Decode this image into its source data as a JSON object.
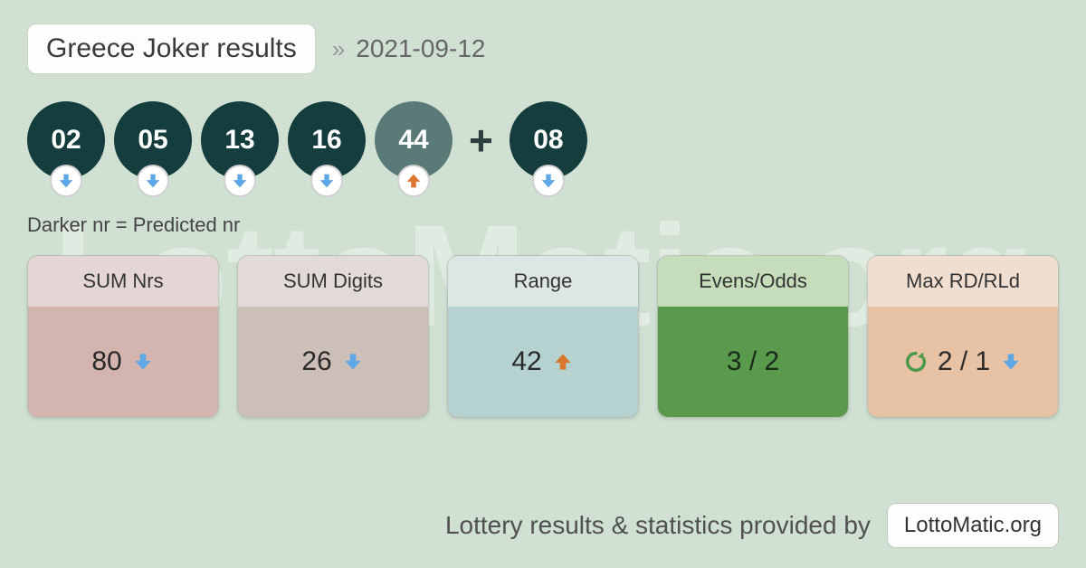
{
  "header": {
    "title": "Greece Joker results",
    "chevron": "»",
    "date": "2021-09-12"
  },
  "balls": {
    "items": [
      {
        "value": "02",
        "shade": "dark",
        "trend": "down"
      },
      {
        "value": "05",
        "shade": "dark",
        "trend": "down"
      },
      {
        "value": "13",
        "shade": "dark",
        "trend": "down"
      },
      {
        "value": "16",
        "shade": "dark",
        "trend": "down"
      },
      {
        "value": "44",
        "shade": "light",
        "trend": "up"
      }
    ],
    "plus": "+",
    "bonus": {
      "value": "08",
      "shade": "dark",
      "trend": "down"
    }
  },
  "legend": "Darker nr = Predicted nr",
  "colors": {
    "ball_dark": "#153d3d",
    "ball_light": "#5a7a78",
    "arrow_down": "#5ea8e6",
    "arrow_up": "#d9772e",
    "refresh": "#4a9a4a"
  },
  "stats": [
    {
      "label": "SUM Nrs",
      "value": "80",
      "trend": "down",
      "head_bg": "#e3d6d4",
      "body_bg": "#d4b4af"
    },
    {
      "label": "SUM Digits",
      "value": "26",
      "trend": "down",
      "head_bg": "#e2dad6",
      "body_bg": "#ccbfb8"
    },
    {
      "label": "Range",
      "value": "42",
      "trend": "up",
      "head_bg": "#dce7e5",
      "body_bg": "#b5d2d0"
    },
    {
      "label": "Evens/Odds",
      "value": "3 / 2",
      "trend": "none",
      "head_bg": "#c6ddbc",
      "body_bg": "#5a9a4c",
      "body_text": "#1a2a1a"
    },
    {
      "label": "Max RD/RLd",
      "value": "2 / 1",
      "trend": "down",
      "head_bg": "#f0dfd0",
      "body_bg": "#e8c2a4",
      "refresh": true
    }
  ],
  "footer": {
    "text": "Lottery results & statistics provided by",
    "brand": "LottoMatic.org"
  },
  "watermark": "LottoMatic.org"
}
